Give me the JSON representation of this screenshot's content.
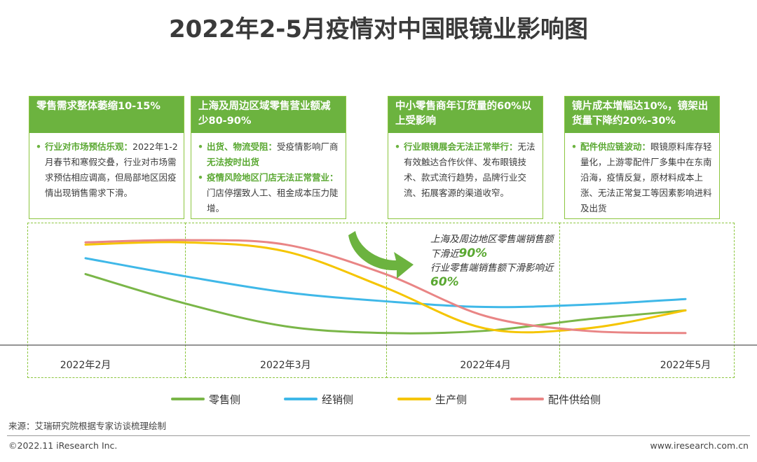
{
  "title": "2022年2-5月疫情对中国眼镜业影响图",
  "cards": [
    {
      "heading": "零售需求整体萎缩10-15%",
      "items": [
        {
          "highlight": "行业对市场预估乐观：",
          "text": "2022年1-2月春节和寒假交叠，行业对市场需求预估相应调高，但局部地区因疫情出现销售需求下滑。"
        }
      ]
    },
    {
      "heading": "上海及周边区域零售营业额减少80-90%",
      "items": [
        {
          "highlight": "出货、物流受阻：",
          "text": "受疫情影响厂商",
          "highlight2": "无法按时出货"
        },
        {
          "highlight": "疫情风险地区门店无法正常营业：",
          "text": "门店停摆致人工、租金成本压力陡增。"
        }
      ]
    },
    {
      "heading": "中小零售商年订货量的60%以上受影响",
      "items": [
        {
          "highlight": "行业眼镜展会无法正常举行：",
          "text": "无法有效触达合作伙伴、发布眼镜技术、款式流行趋势，品牌行业交流、拓展客源的渠道收窄。"
        }
      ]
    },
    {
      "heading": "镜片成本增幅达10%，镜架出货量下降约20%-30%",
      "items": [
        {
          "highlight": "配件供应链波动：",
          "text": "眼镜原料库存轻量化，上游零配件厂多集中在东南沿海，疫情反复，原材料成本上涨、无法正常复工等因素影响进料及出货"
        }
      ]
    }
  ],
  "bullet": "•",
  "annotation": {
    "line1": "上海及周边地区零售端销售额下滑近",
    "value1": "90%",
    "line2": "行业零售端销售额下滑影响近",
    "value2": "60%"
  },
  "chart_data": {
    "type": "line",
    "title": "",
    "xlabel": "",
    "ylabel": "",
    "x": [
      "2022年2月",
      "2022年3月",
      "2022年4月",
      "2022年5月"
    ],
    "y_scale_note": "relative index, no axis shown",
    "ylim": [
      0,
      100
    ],
    "series": [
      {
        "name": "零售侧",
        "color": "#7ab648",
        "x": [
          0,
          0.5,
          1,
          1.5,
          2,
          2.5,
          3
        ],
        "y": [
          62,
          36,
          16,
          10,
          12,
          22,
          30
        ]
      },
      {
        "name": "经销侧",
        "color": "#3fb8e8",
        "x": [
          0,
          0.5,
          1,
          1.5,
          2,
          2.5,
          3
        ],
        "y": [
          76,
          60,
          46,
          38,
          33,
          35,
          40
        ]
      },
      {
        "name": "生产侧",
        "color": "#f5c500",
        "x": [
          0,
          0.5,
          1,
          1.5,
          2,
          2.5,
          3
        ],
        "y": [
          88,
          90,
          82,
          50,
          14,
          14,
          30
        ]
      },
      {
        "name": "配件供给侧",
        "color": "#e98585",
        "x": [
          0,
          0.5,
          1,
          1.5,
          2,
          2.5,
          3
        ],
        "y": [
          90,
          92,
          88,
          62,
          25,
          12,
          10
        ]
      }
    ]
  },
  "source": "来源：艾瑞研究院根据专家访谈梳理绘制",
  "copyright": "©2022.11 iResearch Inc.",
  "website": "www.iresearch.com.cn"
}
